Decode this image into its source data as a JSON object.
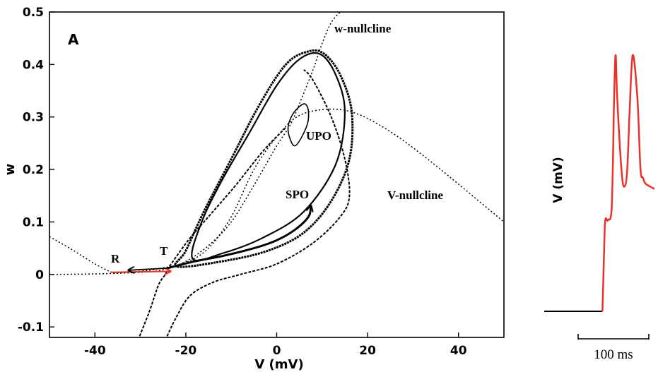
{
  "chart_data": [
    {
      "type": "line",
      "panel_label": "A",
      "xlabel": "V (mV)",
      "ylabel": "w",
      "xlim": [
        -50,
        50
      ],
      "ylim": [
        -0.12,
        0.5
      ],
      "x_ticks": [
        -40,
        -20,
        0,
        20,
        40
      ],
      "x_tick_labels": [
        "-40",
        "-20",
        "0",
        "20",
        "40"
      ],
      "y_ticks": [
        -0.1,
        0,
        0.1,
        0.2,
        0.3,
        0.4,
        0.5
      ],
      "y_tick_labels": [
        "-0.1",
        "0",
        "0.1",
        "0.2",
        "0.3",
        "0.4",
        "0.5"
      ],
      "grid": false,
      "annotations": {
        "w_nullcline": "w-nullcline",
        "v_nullcline": "V-nullcline",
        "upo": "UPO",
        "spo": "SPO",
        "r": "R",
        "t": "T"
      },
      "curves": {
        "w_nullcline": [
          [
            -50,
            0.0
          ],
          [
            -40,
            0.001
          ],
          [
            -30,
            0.004
          ],
          [
            -25,
            0.009
          ],
          [
            -20,
            0.025
          ],
          [
            -15,
            0.055
          ],
          [
            -10,
            0.1
          ],
          [
            -5,
            0.17
          ],
          [
            0,
            0.245
          ],
          [
            3,
            0.285
          ],
          [
            5,
            0.325
          ],
          [
            8,
            0.39
          ],
          [
            10,
            0.44
          ],
          [
            12,
            0.48
          ],
          [
            14,
            0.5
          ]
        ],
        "v_nullcline": [
          [
            -50,
            0.072
          ],
          [
            -45,
            0.047
          ],
          [
            -40,
            0.02
          ],
          [
            -36.5,
            0.005
          ],
          [
            -35,
            0.003
          ],
          [
            -30,
            0.006
          ],
          [
            -26,
            0.011
          ],
          [
            -20,
            0.023
          ],
          [
            -15,
            0.05
          ],
          [
            -10,
            0.11
          ],
          [
            -5,
            0.2
          ],
          [
            0,
            0.262
          ],
          [
            5,
            0.303
          ],
          [
            12,
            0.315
          ],
          [
            18,
            0.305
          ],
          [
            25,
            0.272
          ],
          [
            32,
            0.228
          ],
          [
            40,
            0.172
          ],
          [
            50,
            0.1
          ]
        ],
        "spo": [
          [
            -18.5,
            0.03
          ],
          [
            -16.5,
            0.1
          ],
          [
            -12,
            0.18
          ],
          [
            -6,
            0.27
          ],
          [
            0,
            0.36
          ],
          [
            5,
            0.41
          ],
          [
            9.5,
            0.42
          ],
          [
            13,
            0.38
          ],
          [
            15,
            0.31
          ],
          [
            13,
            0.21
          ],
          [
            6,
            0.12
          ],
          [
            -3,
            0.07
          ],
          [
            -12,
            0.04
          ],
          [
            -18.5,
            0.03
          ]
        ],
        "spo_outer": [
          [
            -22,
            0.015
          ],
          [
            -20,
            0.045
          ],
          [
            -16,
            0.12
          ],
          [
            -10,
            0.22
          ],
          [
            -4,
            0.32
          ],
          [
            2,
            0.4
          ],
          [
            7,
            0.425
          ],
          [
            10.5,
            0.42
          ],
          [
            14,
            0.38
          ],
          [
            16.5,
            0.31
          ],
          [
            16,
            0.22
          ],
          [
            12,
            0.14
          ],
          [
            6,
            0.08
          ],
          [
            -2,
            0.045
          ],
          [
            -12,
            0.025
          ],
          [
            -22,
            0.015
          ]
        ],
        "upo": [
          [
            4.0,
            0.245
          ],
          [
            2.5,
            0.275
          ],
          [
            3.5,
            0.305
          ],
          [
            6.0,
            0.325
          ],
          [
            7.0,
            0.31
          ],
          [
            6.5,
            0.28
          ],
          [
            4.0,
            0.245
          ]
        ],
        "stable_manifold_lower": [
          [
            -30.5,
            -0.125
          ],
          [
            -28,
            -0.07
          ],
          [
            -26,
            -0.02
          ],
          [
            -24.5,
            0.0
          ],
          [
            -24,
            0.01
          ],
          [
            -22,
            0.035
          ],
          [
            -19,
            0.07
          ],
          [
            -14,
            0.12
          ],
          [
            -9,
            0.17
          ],
          [
            -3,
            0.235
          ],
          [
            2,
            0.28
          ]
        ],
        "stable_manifold_upper": [
          [
            -24.5,
            -0.125
          ],
          [
            -22,
            -0.08
          ],
          [
            -19,
            -0.04
          ],
          [
            -14,
            -0.015
          ],
          [
            -8,
            0.0
          ],
          [
            0,
            0.02
          ],
          [
            8,
            0.06
          ],
          [
            14,
            0.11
          ],
          [
            16,
            0.15
          ],
          [
            15,
            0.22
          ],
          [
            12,
            0.3
          ],
          [
            8,
            0.37
          ],
          [
            6,
            0.39
          ]
        ],
        "trajectory": [
          [
            -24,
            0.012
          ],
          [
            -18,
            0.025
          ],
          [
            -12,
            0.035
          ],
          [
            -5,
            0.05
          ],
          [
            0,
            0.065
          ],
          [
            4,
            0.085
          ],
          [
            7,
            0.11
          ],
          [
            7.5,
            0.13
          ]
        ],
        "red_arrow": [
          [
            -36.5,
            0.004
          ],
          [
            -23.5,
            0.006
          ]
        ],
        "black_arrow": [
          [
            -24,
            0.012
          ],
          [
            -32.5,
            0.008
          ]
        ]
      }
    },
    {
      "type": "line",
      "ylabel": "V (mV)",
      "scale_bar_label": "100 ms",
      "time_ms": [
        0,
        60,
        75,
        78,
        82,
        87,
        90,
        92,
        94,
        100,
        104,
        107,
        110,
        114,
        120,
        124,
        127,
        130,
        135,
        142
      ],
      "voltage_mV": [
        -70,
        -70,
        -70,
        -40,
        -38,
        -33,
        5,
        20,
        5,
        -22,
        -26,
        -20,
        0,
        20,
        5,
        -20,
        -23,
        -25,
        -26,
        -27
      ],
      "series": [
        {
          "name": "",
          "color": "#e8322a"
        }
      ]
    }
  ]
}
